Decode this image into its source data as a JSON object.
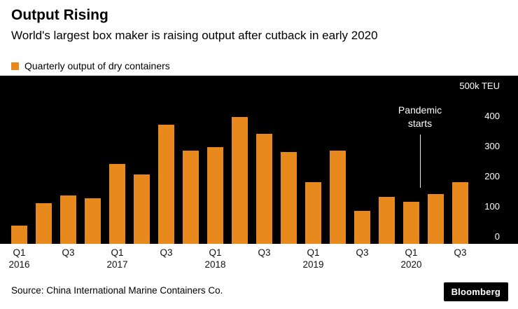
{
  "chart_data": {
    "type": "bar",
    "title": "Output Rising",
    "subtitle": "World's largest box maker is raising output after cutback in early 2020",
    "series_label": "Quarterly output of dry containers",
    "unit": "k TEU",
    "ylim": [
      0,
      500
    ],
    "grid": false,
    "legend_position": "top-left",
    "plot_background": "#000000",
    "bar_color": "#E8891D",
    "y_ticks": [
      {
        "value": 500,
        "label": "500k TEU"
      },
      {
        "value": 400,
        "label": "400"
      },
      {
        "value": 300,
        "label": "300"
      },
      {
        "value": 200,
        "label": "200"
      },
      {
        "value": 100,
        "label": "100"
      },
      {
        "value": 0,
        "label": "0"
      }
    ],
    "categories": [
      "Q1 2016",
      "Q2 2016",
      "Q3 2016",
      "Q4 2016",
      "Q1 2017",
      "Q2 2017",
      "Q3 2017",
      "Q4 2017",
      "Q1 2018",
      "Q2 2018",
      "Q3 2018",
      "Q4 2018",
      "Q1 2019",
      "Q2 2019",
      "Q3 2019",
      "Q4 2019",
      "Q1 2020",
      "Q2 2020",
      "Q3 2020"
    ],
    "values": [
      60,
      135,
      160,
      150,
      265,
      230,
      395,
      310,
      320,
      420,
      365,
      305,
      205,
      310,
      110,
      155,
      140,
      165,
      205
    ],
    "x_ticks": [
      {
        "index": 0,
        "label": "Q1",
        "year": "2016"
      },
      {
        "index": 2,
        "label": "Q3"
      },
      {
        "index": 4,
        "label": "Q1",
        "year": "2017"
      },
      {
        "index": 6,
        "label": "Q3"
      },
      {
        "index": 8,
        "label": "Q1",
        "year": "2018"
      },
      {
        "index": 10,
        "label": "Q3"
      },
      {
        "index": 12,
        "label": "Q1",
        "year": "2019"
      },
      {
        "index": 14,
        "label": "Q3"
      },
      {
        "index": 16,
        "label": "Q1",
        "year": "2020"
      },
      {
        "index": 18,
        "label": "Q3"
      }
    ],
    "annotation": {
      "lines": [
        "Pandemic",
        "starts"
      ],
      "between_indices": [
        16,
        17
      ]
    }
  },
  "source": "Source: China International Marine Containers Co.",
  "brand": "Bloomberg"
}
